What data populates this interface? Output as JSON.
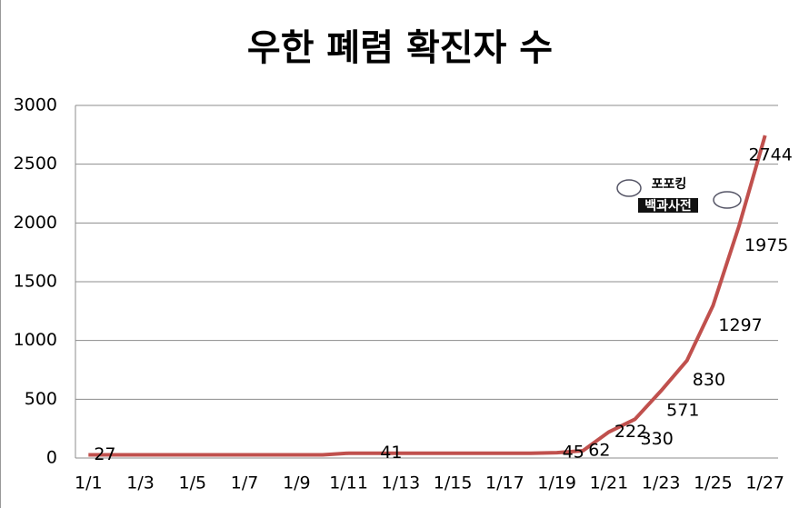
{
  "chart_data": {
    "type": "line",
    "title": "우한 폐렴 확진자 수",
    "watermark": [
      "포포킹",
      "백과사전"
    ],
    "categories": [
      "1/1",
      null,
      "1/3",
      null,
      "1/5",
      null,
      "1/7",
      null,
      "1/9",
      null,
      "1/11",
      null,
      "1/13",
      null,
      "1/15",
      null,
      "1/17",
      null,
      "1/19",
      null,
      "1/21",
      null,
      "1/23",
      null,
      "1/25",
      null,
      "1/27"
    ],
    "series": [
      {
        "name": "확진자 수",
        "color": "#c0504d",
        "values": [
          27,
          27,
          27,
          27,
          27,
          27,
          27,
          27,
          27,
          27,
          41,
          41,
          41,
          41,
          41,
          41,
          41,
          41,
          45,
          62,
          222,
          330,
          571,
          830,
          1297,
          1975,
          2744
        ],
        "value_labels": [
          "27",
          null,
          null,
          null,
          null,
          null,
          null,
          null,
          null,
          null,
          null,
          "41",
          null,
          null,
          null,
          null,
          null,
          null,
          "45",
          "62",
          "222",
          "330",
          "571",
          "830",
          "1297",
          "1975",
          "2744"
        ]
      }
    ],
    "ylim": [
      0,
      3000
    ],
    "yticks": [
      0,
      500,
      1000,
      1500,
      2000,
      2500,
      3000
    ],
    "grid": true
  }
}
